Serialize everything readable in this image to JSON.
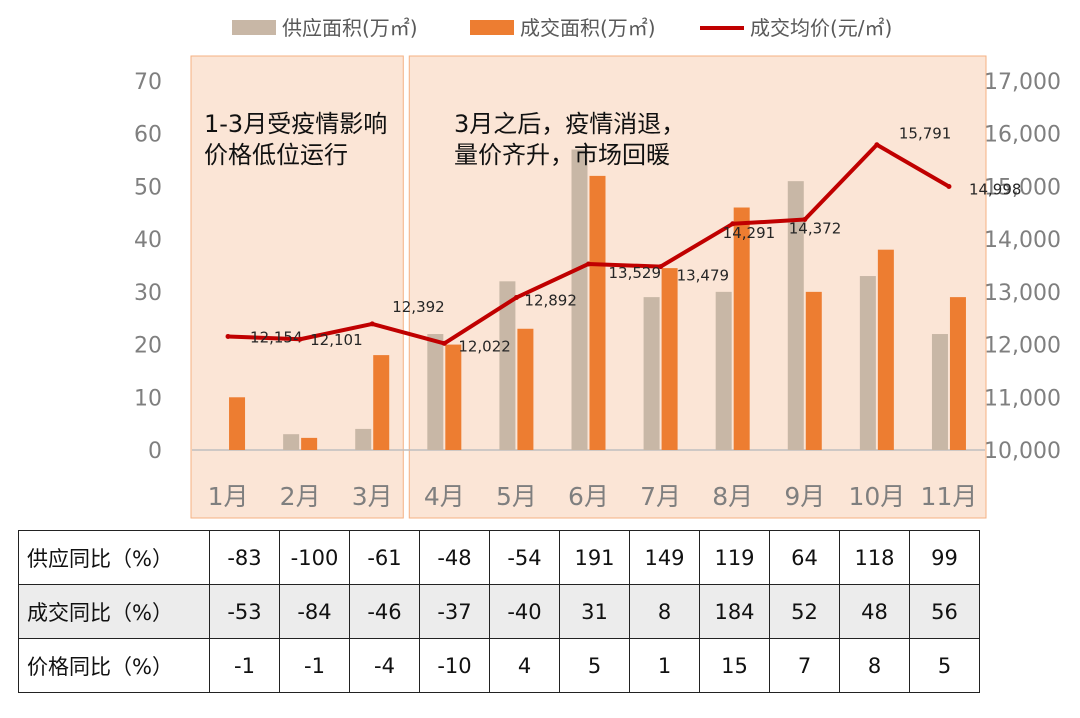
{
  "chart_data": {
    "type": "bar-line combo",
    "categories": [
      "1月",
      "2月",
      "3月",
      "4月",
      "5月",
      "6月",
      "7月",
      "8月",
      "9月",
      "10月",
      "11月"
    ],
    "series": [
      {
        "name": "供应面积(万㎡)",
        "type": "bar",
        "axis": "left",
        "color": "#c8b7a6",
        "values": [
          0,
          3,
          4,
          22,
          32,
          57,
          29,
          30,
          51,
          33,
          22
        ]
      },
      {
        "name": "成交面积(万㎡)",
        "type": "bar",
        "axis": "left",
        "color": "#ed7d31",
        "values": [
          10,
          2.3,
          18,
          20,
          23,
          52,
          34.5,
          46,
          30,
          38,
          29
        ]
      },
      {
        "name": "成交均价(元/㎡)",
        "type": "line",
        "axis": "right",
        "color": "#c00000",
        "values": [
          12154,
          12101,
          12392,
          12022,
          12892,
          13529,
          13479,
          14291,
          14372,
          15791,
          14998
        ],
        "labels": [
          "12,154",
          "12,101",
          "12,392",
          "12,022",
          "12,892",
          "13,529",
          "13,479",
          "14,291",
          "14,372",
          "15,791",
          "14,998"
        ]
      }
    ],
    "y_left": {
      "min": 0,
      "max": 70,
      "ticks": [
        "0",
        "10",
        "20",
        "30",
        "40",
        "50",
        "60",
        "70"
      ]
    },
    "y_right": {
      "min": 10000,
      "max": 17000,
      "ticks": [
        "10,000",
        "11,000",
        "12,000",
        "13,000",
        "14,000",
        "15,000",
        "16,000",
        "17,000"
      ]
    },
    "annotations": [
      {
        "lines": [
          "1-3月受疫情影响",
          "价格低位运行"
        ],
        "months": [
          "1月",
          "3月"
        ]
      },
      {
        "lines": [
          "3月之后，疫情消退，",
          "量价齐升，市场回暖"
        ],
        "months": [
          "4月",
          "11月"
        ]
      }
    ],
    "legend": {
      "placement": "top"
    },
    "grid": false
  },
  "table": {
    "rows": [
      {
        "label": "供应同比（%）",
        "values": [
          "-83",
          "-100",
          "-61",
          "-48",
          "-54",
          "191",
          "149",
          "119",
          "64",
          "118",
          "99"
        ]
      },
      {
        "label": "成交同比（%）",
        "values": [
          "-53",
          "-84",
          "-46",
          "-37",
          "-40",
          "31",
          "8",
          "184",
          "52",
          "48",
          "56"
        ]
      },
      {
        "label": "价格同比（%）",
        "values": [
          "-1",
          "-1",
          "-4",
          "-10",
          "4",
          "5",
          "1",
          "15",
          "7",
          "8",
          "5"
        ]
      }
    ]
  }
}
